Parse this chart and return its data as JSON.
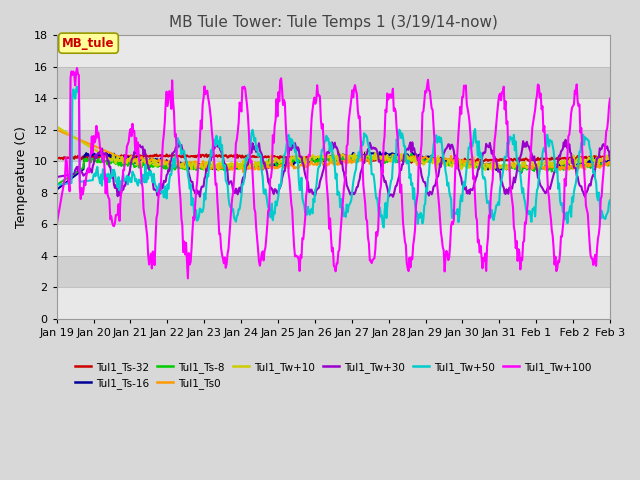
{
  "title": "MB Tule Tower: Tule Temps 1 (3/19/14-now)",
  "ylabel": "Temperature (C)",
  "ylim": [
    0,
    18
  ],
  "yticks": [
    0,
    2,
    4,
    6,
    8,
    10,
    12,
    14,
    16,
    18
  ],
  "xlim": [
    0,
    15
  ],
  "xtick_labels": [
    "Jan 19",
    "Jan 20",
    "Jan 21",
    "Jan 22",
    "Jan 23",
    "Jan 24",
    "Jan 25",
    "Jan 26",
    "Jan 27",
    "Jan 28",
    "Jan 29",
    "Jan 30",
    "Jan 31",
    "Feb 1",
    " Feb 2",
    "Feb 3"
  ],
  "annotation_box": "MB_tule",
  "annotation_color": "#cc0000",
  "background_color": "#d8d8d8",
  "plot_bg_color": "#ffffff",
  "band_colors": [
    "#e8e8e8",
    "#d0d0d0"
  ],
  "grid_color": "#bbbbbb",
  "series": [
    {
      "label": "Tul1_Ts-32",
      "color": "#cc0000",
      "lw": 1.5
    },
    {
      "label": "Tul1_Ts-16",
      "color": "#000099",
      "lw": 1.5
    },
    {
      "label": "Tul1_Ts-8",
      "color": "#00cc00",
      "lw": 1.5
    },
    {
      "label": "Tul1_Ts0",
      "color": "#ff9900",
      "lw": 1.5
    },
    {
      "label": "Tul1_Tw+10",
      "color": "#cccc00",
      "lw": 1.5
    },
    {
      "label": "Tul1_Tw+30",
      "color": "#9900cc",
      "lw": 1.5
    },
    {
      "label": "Tul1_Tw+50",
      "color": "#00cccc",
      "lw": 1.5
    },
    {
      "label": "Tul1_Tw+100",
      "color": "#ff00ff",
      "lw": 1.5
    }
  ]
}
